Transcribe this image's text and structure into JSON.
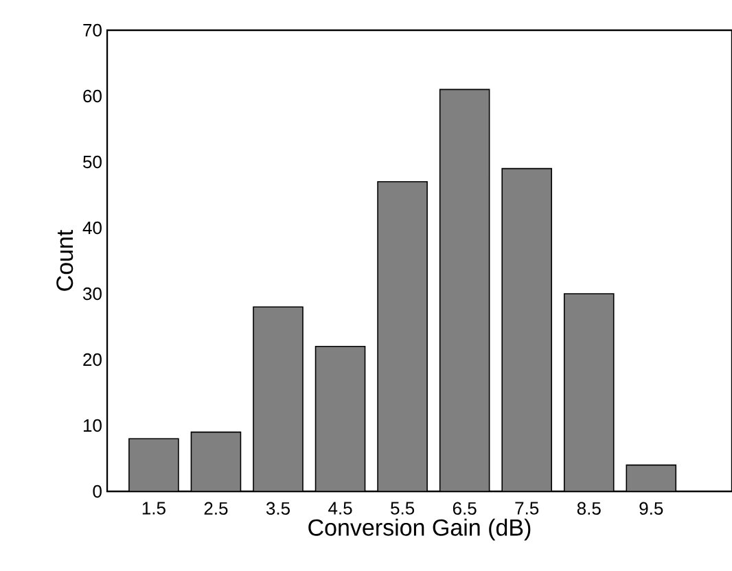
{
  "chart_data": {
    "type": "bar",
    "xlabel": "Conversion Gain (dB)",
    "ylabel": "Count",
    "categories": [
      "1.5",
      "2.5",
      "3.5",
      "4.5",
      "5.5",
      "6.5",
      "7.5",
      "8.5",
      "9.5"
    ],
    "values": [
      8,
      9,
      28,
      22,
      47,
      61,
      49,
      30,
      4
    ],
    "color": "#808080",
    "ylim": [
      0,
      70
    ],
    "yticks": [
      0,
      10,
      20,
      30,
      40,
      50,
      60,
      70
    ],
    "grid": false
  }
}
